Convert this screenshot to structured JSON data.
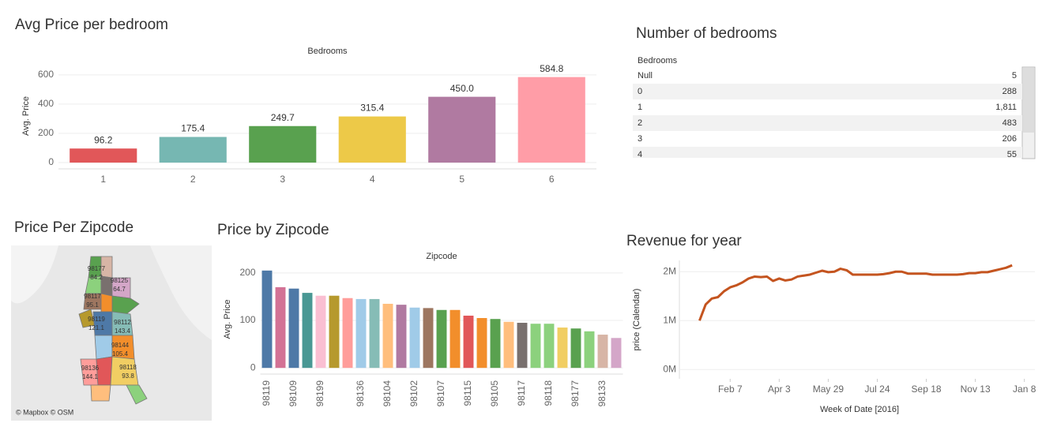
{
  "chart_data": [
    {
      "type": "bar",
      "title": "Avg Price per bedroom",
      "x_label": "Bedrooms",
      "y_label": "Avg. Price",
      "categories": [
        "1",
        "2",
        "3",
        "4",
        "5",
        "6"
      ],
      "values": [
        96.2,
        175.4,
        249.7,
        315.4,
        450.0,
        584.8
      ],
      "value_labels": [
        "96.2",
        "175.4",
        "249.7",
        "315.4",
        "450.0",
        "584.8"
      ],
      "colors": [
        "#e15759",
        "#76b7b2",
        "#59a14f",
        "#edc948",
        "#b07aa1",
        "#ff9da7"
      ],
      "ylim": [
        -43,
        680
      ],
      "yticks": [
        0,
        200,
        400,
        600
      ],
      "grid": true
    },
    {
      "type": "bar",
      "title": "Price by Zipcode",
      "x_label": "Zipcode",
      "y_label": "Avg. Price",
      "categories": [
        "98119",
        null,
        "98109",
        null,
        "98199",
        null,
        null,
        "98136",
        null,
        "98104",
        null,
        "98102",
        null,
        "98107",
        null,
        "98115",
        null,
        "98105",
        null,
        "98117",
        null,
        "98118",
        null,
        "98177",
        null,
        "98133",
        null
      ],
      "values": [
        205,
        170,
        167,
        158,
        152,
        152,
        147,
        145,
        145,
        135,
        133,
        127,
        126,
        122,
        122,
        110,
        105,
        103,
        97,
        95,
        93,
        93,
        85,
        83,
        77,
        70,
        63
      ],
      "colors": [
        "#4e79a7",
        "#d37295",
        "#4e79a7",
        "#499894",
        "#fabfd2",
        "#b6992d",
        "#ff9d9a",
        "#a0cbe8",
        "#86bcb6",
        "#ffbe7d",
        "#b07aa1",
        "#a0cbe8",
        "#9d7660",
        "#59a14f",
        "#f28e2b",
        "#e15759",
        "#f28e2b",
        "#59a14f",
        "#ffbe7d",
        "#79706e",
        "#8cd17d",
        "#8cd17d",
        "#f1ce63",
        "#59a14f",
        "#8cd17d",
        "#d7b5a6",
        "#d4a6c8"
      ],
      "ylim": [
        -13,
        218
      ],
      "yticks": [
        0,
        100,
        200
      ],
      "grid": true
    },
    {
      "type": "line",
      "title": "Revenue for year",
      "x_label": "Week of Date [2016]",
      "y_label": "price (Calendar)",
      "x": [
        "2016-01-03",
        "2016-01-10",
        "2016-01-17",
        "2016-01-24",
        "2016-01-31",
        "2016-02-07",
        "2016-02-14",
        "2016-02-21",
        "2016-02-28",
        "2016-03-06",
        "2016-03-13",
        "2016-03-20",
        "2016-03-27",
        "2016-04-03",
        "2016-04-10",
        "2016-04-17",
        "2016-04-24",
        "2016-05-01",
        "2016-05-08",
        "2016-05-15",
        "2016-05-22",
        "2016-05-29",
        "2016-06-05",
        "2016-06-12",
        "2016-06-19",
        "2016-06-26",
        "2016-07-03",
        "2016-07-10",
        "2016-07-17",
        "2016-07-24",
        "2016-07-31",
        "2016-08-07",
        "2016-08-14",
        "2016-08-21",
        "2016-08-28",
        "2016-09-04",
        "2016-09-11",
        "2016-09-18",
        "2016-09-25",
        "2016-10-02",
        "2016-10-09",
        "2016-10-16",
        "2016-10-23",
        "2016-10-30",
        "2016-11-06",
        "2016-11-13",
        "2016-11-20",
        "2016-11-27",
        "2016-12-04",
        "2016-12-11",
        "2016-12-18",
        "2016-12-25"
      ],
      "series": [
        {
          "name": "price",
          "color": "#c4541f",
          "values": [
            1000000,
            1330000,
            1450000,
            1480000,
            1600000,
            1680000,
            1720000,
            1780000,
            1860000,
            1900000,
            1890000,
            1900000,
            1810000,
            1860000,
            1820000,
            1840000,
            1900000,
            1920000,
            1940000,
            1980000,
            2020000,
            1990000,
            2000000,
            2060000,
            2030000,
            1940000,
            1940000,
            1940000,
            1940000,
            1940000,
            1950000,
            1970000,
            2000000,
            2000000,
            1960000,
            1960000,
            1960000,
            1960000,
            1940000,
            1940000,
            1940000,
            1940000,
            1940000,
            1950000,
            1970000,
            1970000,
            1990000,
            1990000,
            2020000,
            2050000,
            2080000,
            2130000
          ]
        }
      ],
      "xlim": [
        "2015-12-11",
        "2017-01-20"
      ],
      "xticks": [
        {
          "value": "2016-02-07",
          "label": "Feb 7"
        },
        {
          "value": "2016-04-03",
          "label": "Apr 3"
        },
        {
          "value": "2016-05-29",
          "label": "May 29"
        },
        {
          "value": "2016-07-24",
          "label": "Jul 24"
        },
        {
          "value": "2016-09-18",
          "label": "Sep 18"
        },
        {
          "value": "2016-11-13",
          "label": "Nov 13"
        },
        {
          "value": "2017-01-08",
          "label": "Jan 8"
        }
      ],
      "ylim": [
        -190000,
        2230000
      ],
      "yticks": [
        {
          "value": 0,
          "label": "0M"
        },
        {
          "value": 1000000,
          "label": "1M"
        },
        {
          "value": 2000000,
          "label": "2M"
        }
      ],
      "grid": true
    }
  ],
  "table": {
    "title": "Number of bedrooms",
    "header": "Bedrooms",
    "rows": [
      [
        "Null",
        "5"
      ],
      [
        "0",
        "288"
      ],
      [
        "1",
        "1,811"
      ],
      [
        "2",
        "483"
      ],
      [
        "3",
        "206"
      ],
      [
        "4",
        "55"
      ]
    ]
  },
  "map": {
    "title": "Price Per Zipcode",
    "credit": "© Mapbox © OSM",
    "labels": [
      {
        "zip": "98177",
        "value": "84.2"
      },
      {
        "zip": "98125",
        "value": "64.7"
      },
      {
        "zip": "98117",
        "value": "95.1"
      },
      {
        "zip": "98119",
        "value": "121.1"
      },
      {
        "zip": "98112",
        "value": "143.4"
      },
      {
        "zip": "98144",
        "value": "105.4"
      },
      {
        "zip": "98136",
        "value": "144.1"
      },
      {
        "zip": "98118",
        "value": "93.8"
      }
    ]
  }
}
